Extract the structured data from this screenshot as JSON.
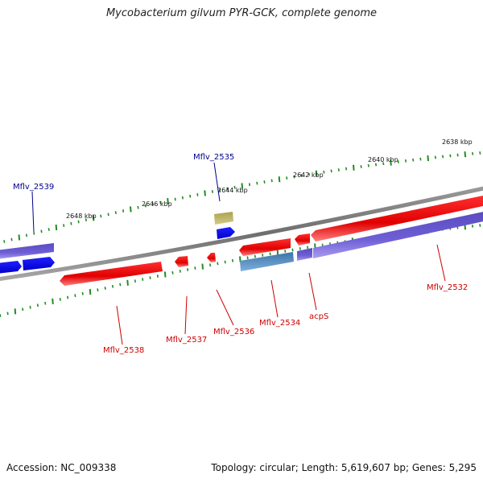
{
  "title": "Mycobacterium gilvum PYR-GCK, complete genome",
  "footer": {
    "accession": "Accession: NC_009338",
    "info": "Topology: circular; Length: 5,619,607 bp; Genes: 5,295"
  },
  "ruler_labels": [
    "2638 kbp",
    "2640 kbp",
    "2642 kbp",
    "2644 kbp",
    "2646 kbp",
    "2648 kbp"
  ],
  "gene_labels": {
    "forward": [
      "Mflv_2539",
      "Mflv_2535"
    ],
    "reverse": [
      "Mflv_2538",
      "Mflv_2537",
      "Mflv_2536",
      "Mflv_2534",
      "acpS",
      "Mflv_2532"
    ]
  },
  "colors": {
    "reverse_gene": "#ff0000",
    "forward_gene": "#0000ff",
    "forward_cds": "#7766dd",
    "special_gene": "#bbb366",
    "steel_gene": "#4a86bb",
    "backbone": "#808080",
    "tick": "#228b22",
    "forward_label": "#00008b",
    "reverse_label": "#cc0000"
  }
}
